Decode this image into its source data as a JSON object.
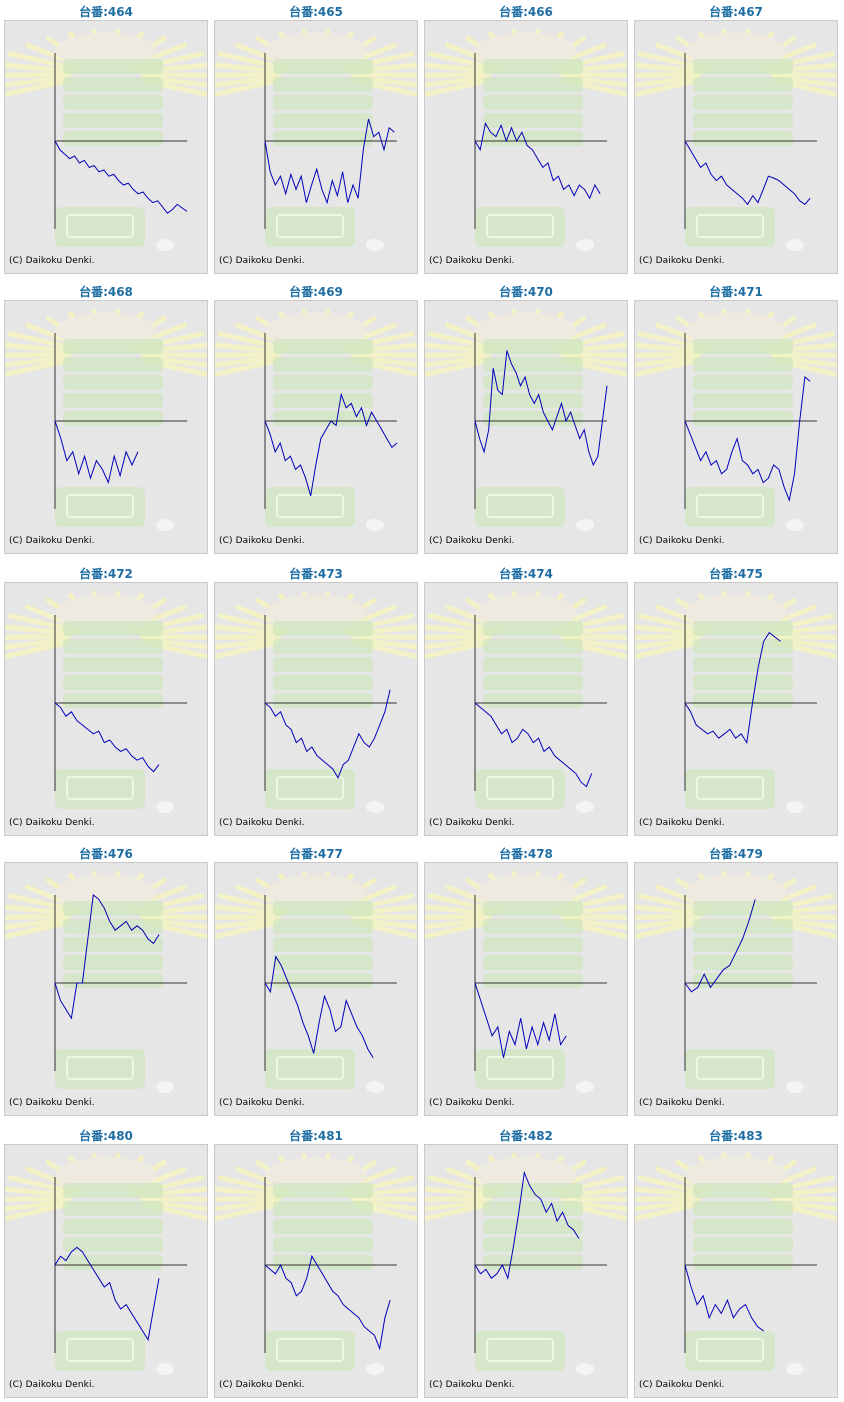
{
  "copyright": "(C) Daikoku Denki.",
  "colors": {
    "title": "#1f6ea3",
    "series": "#0000bb",
    "axis": "#333333",
    "panel_bg": "#e6e6e6"
  },
  "chart_data": [
    {
      "type": "line",
      "machine": "464",
      "title": "台番:464",
      "ylim": [
        -1,
        1
      ],
      "values": [
        0,
        -0.1,
        -0.15,
        -0.2,
        -0.17,
        -0.25,
        -0.22,
        -0.3,
        -0.28,
        -0.35,
        -0.33,
        -0.4,
        -0.38,
        -0.45,
        -0.5,
        -0.48,
        -0.55,
        -0.6,
        -0.58,
        -0.65,
        -0.7,
        -0.68,
        -0.75,
        -0.82,
        -0.78,
        -0.72,
        -0.76,
        -0.8
      ]
    },
    {
      "type": "line",
      "machine": "465",
      "title": "台番:465",
      "ylim": [
        -1,
        1
      ],
      "values": [
        0,
        -0.35,
        -0.5,
        -0.4,
        -0.6,
        -0.38,
        -0.55,
        -0.4,
        -0.7,
        -0.5,
        -0.32,
        -0.55,
        -0.7,
        -0.45,
        -0.62,
        -0.35,
        -0.7,
        -0.5,
        -0.65,
        -0.1,
        0.25,
        0.05,
        0.1,
        -0.1,
        0.15,
        0.1
      ]
    },
    {
      "type": "line",
      "machine": "466",
      "title": "台番:466",
      "ylim": [
        -1,
        1
      ],
      "values": [
        0,
        -0.1,
        0.2,
        0.1,
        0.05,
        0.18,
        0.0,
        0.15,
        0.0,
        0.1,
        -0.05,
        -0.1,
        -0.2,
        -0.3,
        -0.25,
        -0.45,
        -0.4,
        -0.55,
        -0.5,
        -0.62,
        -0.5,
        -0.55,
        -0.65,
        -0.5,
        -0.6
      ]
    },
    {
      "type": "line",
      "machine": "467",
      "title": "台番:467",
      "ylim": [
        -1,
        1
      ],
      "values": [
        0,
        -0.1,
        -0.2,
        -0.3,
        -0.25,
        -0.38,
        -0.45,
        -0.4,
        -0.5,
        -0.55,
        -0.6,
        -0.65,
        -0.72,
        -0.62,
        -0.7,
        -0.55,
        -0.4,
        -0.42,
        -0.45,
        -0.5,
        -0.55,
        -0.6,
        -0.68,
        -0.72,
        -0.65
      ]
    },
    {
      "type": "line",
      "machine": "468",
      "title": "台番:468",
      "ylim": [
        -1,
        1
      ],
      "values": [
        0,
        -0.2,
        -0.45,
        -0.35,
        -0.6,
        -0.4,
        -0.65,
        -0.45,
        -0.55,
        -0.7,
        -0.4,
        -0.62,
        -0.35,
        -0.5,
        -0.35
      ]
    },
    {
      "type": "line",
      "machine": "469",
      "title": "台番:469",
      "ylim": [
        -1,
        1
      ],
      "values": [
        0,
        -0.15,
        -0.35,
        -0.25,
        -0.45,
        -0.4,
        -0.55,
        -0.5,
        -0.65,
        -0.85,
        -0.5,
        -0.2,
        -0.1,
        0.0,
        -0.05,
        0.3,
        0.15,
        0.2,
        0.05,
        0.15,
        -0.05,
        0.1,
        0.0,
        -0.1,
        -0.2,
        -0.3,
        -0.25
      ]
    },
    {
      "type": "line",
      "machine": "470",
      "title": "台番:470",
      "ylim": [
        -1,
        1
      ],
      "values": [
        0,
        -0.2,
        -0.35,
        -0.1,
        0.6,
        0.35,
        0.3,
        0.8,
        0.65,
        0.55,
        0.4,
        0.5,
        0.3,
        0.2,
        0.3,
        0.1,
        0.0,
        -0.1,
        0.05,
        0.2,
        0.0,
        0.1,
        -0.05,
        -0.2,
        -0.1,
        -0.35,
        -0.5,
        -0.4,
        0.0,
        0.4
      ]
    },
    {
      "type": "line",
      "machine": "471",
      "title": "台番:471",
      "ylim": [
        -1,
        1
      ],
      "values": [
        0,
        -0.15,
        -0.3,
        -0.45,
        -0.35,
        -0.5,
        -0.45,
        -0.6,
        -0.55,
        -0.35,
        -0.2,
        -0.45,
        -0.5,
        -0.6,
        -0.55,
        -0.7,
        -0.65,
        -0.5,
        -0.55,
        -0.75,
        -0.9,
        -0.6,
        0.0,
        0.5,
        0.45
      ]
    },
    {
      "type": "line",
      "machine": "472",
      "title": "台番:472",
      "ylim": [
        -1,
        1
      ],
      "values": [
        0,
        -0.05,
        -0.15,
        -0.1,
        -0.2,
        -0.25,
        -0.3,
        -0.35,
        -0.32,
        -0.45,
        -0.42,
        -0.5,
        -0.55,
        -0.52,
        -0.6,
        -0.65,
        -0.62,
        -0.72,
        -0.78,
        -0.7
      ]
    },
    {
      "type": "line",
      "machine": "473",
      "title": "台番:473",
      "ylim": [
        -1,
        1
      ],
      "values": [
        0,
        -0.05,
        -0.15,
        -0.1,
        -0.25,
        -0.3,
        -0.45,
        -0.4,
        -0.55,
        -0.5,
        -0.6,
        -0.65,
        -0.7,
        -0.75,
        -0.85,
        -0.7,
        -0.65,
        -0.5,
        -0.35,
        -0.45,
        -0.5,
        -0.4,
        -0.25,
        -0.1,
        0.15
      ]
    },
    {
      "type": "line",
      "machine": "474",
      "title": "台番:474",
      "ylim": [
        -1,
        1
      ],
      "values": [
        0,
        -0.05,
        -0.1,
        -0.15,
        -0.25,
        -0.35,
        -0.3,
        -0.45,
        -0.4,
        -0.3,
        -0.35,
        -0.45,
        -0.4,
        -0.55,
        -0.5,
        -0.6,
        -0.65,
        -0.7,
        -0.75,
        -0.8,
        -0.9,
        -0.95,
        -0.8
      ]
    },
    {
      "type": "line",
      "machine": "475",
      "title": "台番:475",
      "ylim": [
        -1,
        1
      ],
      "values": [
        0,
        -0.1,
        -0.25,
        -0.3,
        -0.35,
        -0.32,
        -0.4,
        -0.35,
        -0.3,
        -0.4,
        -0.35,
        -0.45,
        0.0,
        0.4,
        0.7,
        0.8,
        0.75,
        0.7
      ]
    },
    {
      "type": "line",
      "machine": "476",
      "title": "台番:476",
      "ylim": [
        -1,
        1
      ],
      "values": [
        0,
        -0.2,
        -0.3,
        -0.4,
        0.0,
        0.0,
        0.5,
        1.0,
        0.95,
        0.85,
        0.7,
        0.6,
        0.65,
        0.7,
        0.6,
        0.65,
        0.6,
        0.5,
        0.45,
        0.55
      ]
    },
    {
      "type": "line",
      "machine": "477",
      "title": "台番:477",
      "ylim": [
        -1,
        1
      ],
      "values": [
        0,
        -0.1,
        0.3,
        0.2,
        0.05,
        -0.1,
        -0.25,
        -0.45,
        -0.6,
        -0.8,
        -0.45,
        -0.15,
        -0.3,
        -0.55,
        -0.5,
        -0.2,
        -0.35,
        -0.5,
        -0.6,
        -0.75,
        -0.85
      ]
    },
    {
      "type": "line",
      "machine": "478",
      "title": "台番:478",
      "ylim": [
        -1,
        1
      ],
      "values": [
        0,
        -0.2,
        -0.4,
        -0.6,
        -0.5,
        -0.85,
        -0.55,
        -0.7,
        -0.4,
        -0.75,
        -0.5,
        -0.7,
        -0.45,
        -0.65,
        -0.35,
        -0.7,
        -0.6
      ]
    },
    {
      "type": "line",
      "machine": "479",
      "title": "台番:479",
      "ylim": [
        -1,
        1
      ],
      "values": [
        0,
        -0.1,
        -0.05,
        0.1,
        -0.05,
        0.05,
        0.15,
        0.2,
        0.35,
        0.5,
        0.7,
        0.95
      ]
    },
    {
      "type": "line",
      "machine": "480",
      "title": "台番:480",
      "ylim": [
        -1,
        1
      ],
      "values": [
        0,
        0.1,
        0.05,
        0.15,
        0.2,
        0.15,
        0.05,
        -0.05,
        -0.15,
        -0.25,
        -0.2,
        -0.4,
        -0.5,
        -0.45,
        -0.55,
        -0.65,
        -0.75,
        -0.85,
        -0.5,
        -0.15
      ]
    },
    {
      "type": "line",
      "machine": "481",
      "title": "台番:481",
      "ylim": [
        -1,
        1
      ],
      "values": [
        0,
        -0.05,
        -0.1,
        0.0,
        -0.15,
        -0.2,
        -0.35,
        -0.3,
        -0.15,
        0.1,
        0.0,
        -0.1,
        -0.2,
        -0.3,
        -0.35,
        -0.45,
        -0.5,
        -0.55,
        -0.6,
        -0.7,
        -0.75,
        -0.8,
        -0.95,
        -0.6,
        -0.4
      ]
    },
    {
      "type": "line",
      "machine": "482",
      "title": "台番:482",
      "ylim": [
        -1,
        1
      ],
      "values": [
        0,
        -0.1,
        -0.05,
        -0.15,
        -0.1,
        0.0,
        -0.15,
        0.2,
        0.6,
        1.05,
        0.9,
        0.8,
        0.75,
        0.6,
        0.7,
        0.5,
        0.6,
        0.45,
        0.4,
        0.3
      ]
    },
    {
      "type": "line",
      "machine": "483",
      "title": "台番:483",
      "ylim": [
        -1,
        1
      ],
      "values": [
        0,
        -0.25,
        -0.45,
        -0.35,
        -0.6,
        -0.45,
        -0.55,
        -0.4,
        -0.6,
        -0.5,
        -0.45,
        -0.6,
        -0.7,
        -0.75
      ]
    }
  ]
}
